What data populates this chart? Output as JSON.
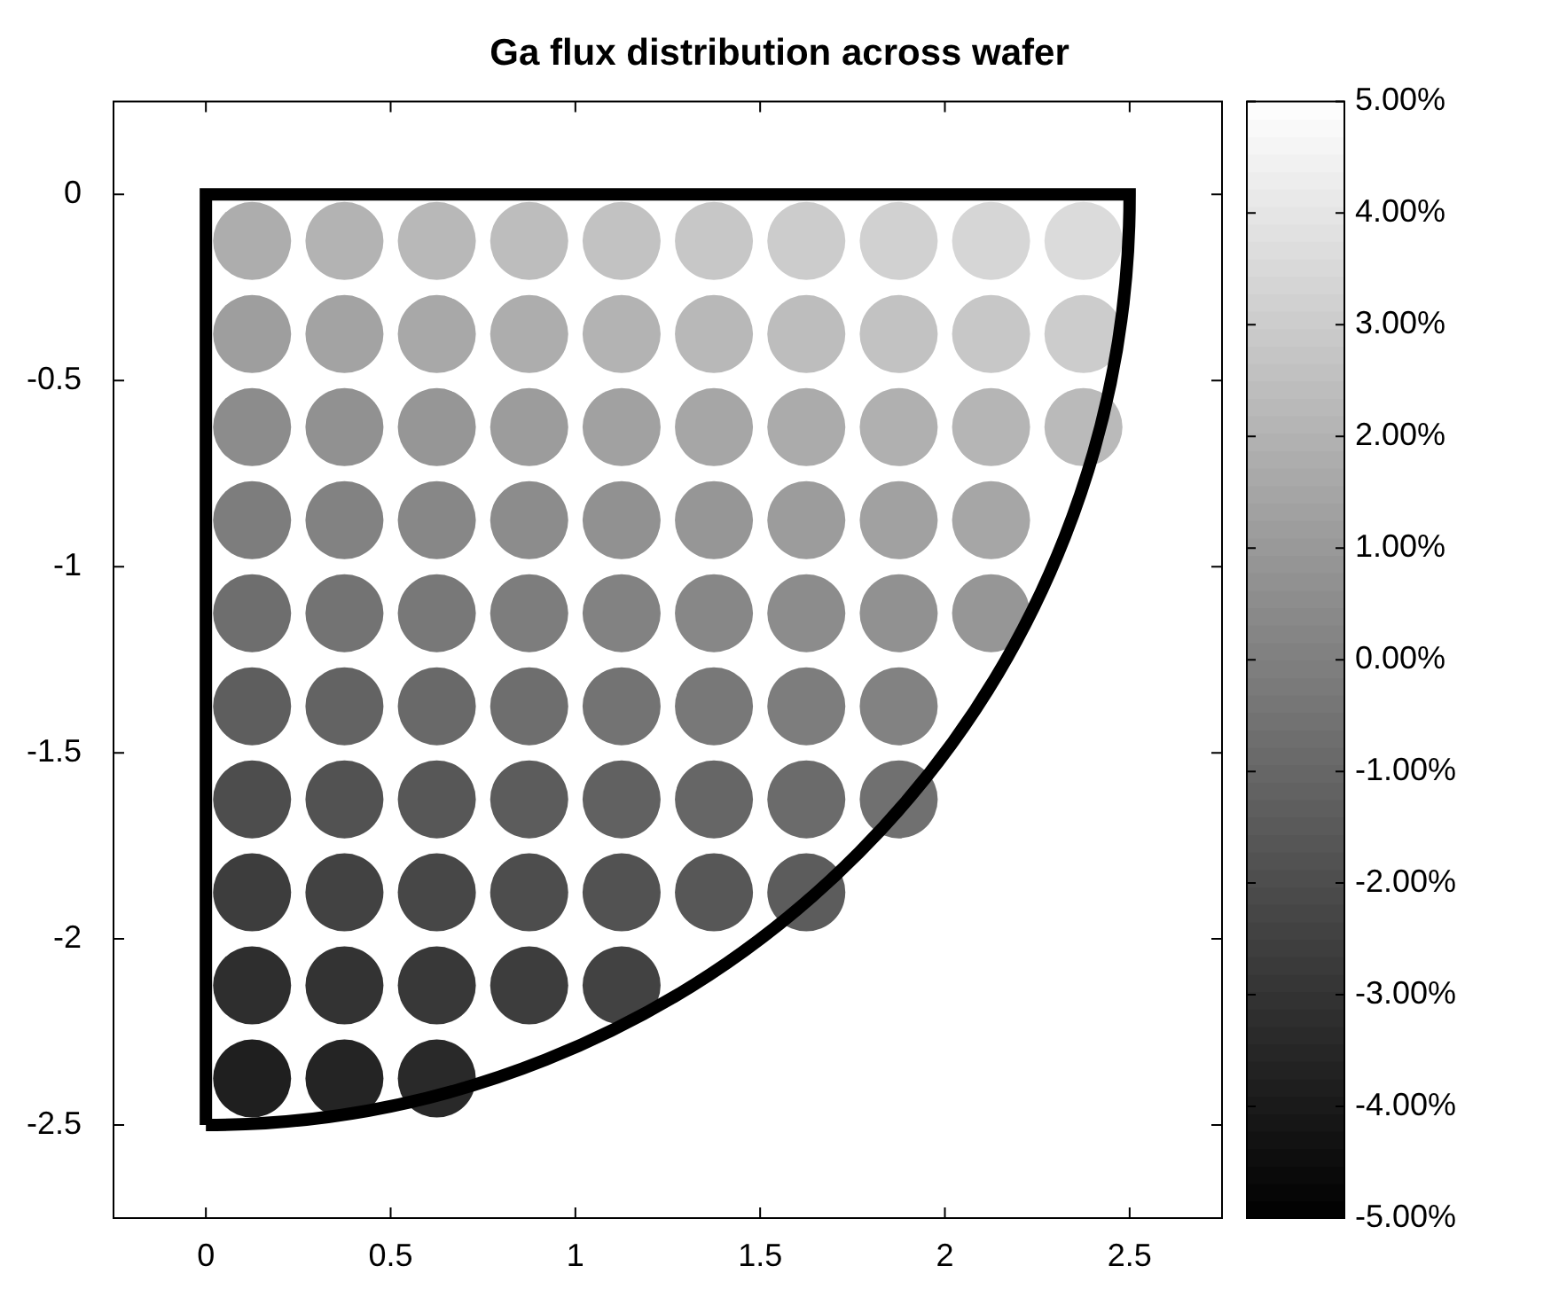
{
  "chart_data": {
    "type": "scatter",
    "title": "Ga flux distribution across wafer",
    "marker": "circle",
    "x": [
      0.125,
      0.375,
      0.625,
      0.875,
      1.125,
      1.375,
      1.625,
      1.875,
      2.125,
      2.375,
      0.125,
      0.375,
      0.625,
      0.875,
      1.125,
      1.375,
      1.625,
      1.875,
      2.125,
      2.375,
      0.125,
      0.375,
      0.625,
      0.875,
      1.125,
      1.375,
      1.625,
      1.875,
      2.125,
      2.375,
      0.125,
      0.375,
      0.625,
      0.875,
      1.125,
      1.375,
      1.625,
      1.875,
      2.125,
      0.125,
      0.375,
      0.625,
      0.875,
      1.125,
      1.375,
      1.625,
      1.875,
      2.125,
      0.125,
      0.375,
      0.625,
      0.875,
      1.125,
      1.375,
      1.625,
      1.875,
      0.125,
      0.375,
      0.625,
      0.875,
      1.125,
      1.375,
      1.625,
      1.875,
      0.125,
      0.375,
      0.625,
      0.875,
      1.125,
      1.375,
      1.625,
      0.125,
      0.375,
      0.625,
      0.875,
      1.125,
      0.125,
      0.375,
      0.625
    ],
    "values": [
      -0.125,
      -0.125,
      -0.125,
      -0.125,
      -0.125,
      -0.125,
      -0.125,
      -0.125,
      -0.125,
      -0.125,
      -0.375,
      -0.375,
      -0.375,
      -0.375,
      -0.375,
      -0.375,
      -0.375,
      -0.375,
      -0.375,
      -0.375,
      -0.625,
      -0.625,
      -0.625,
      -0.625,
      -0.625,
      -0.625,
      -0.625,
      -0.625,
      -0.625,
      -0.625,
      -0.875,
      -0.875,
      -0.875,
      -0.875,
      -0.875,
      -0.875,
      -0.875,
      -0.875,
      -0.875,
      -1.125,
      -1.125,
      -1.125,
      -1.125,
      -1.125,
      -1.125,
      -1.125,
      -1.125,
      -1.125,
      -1.375,
      -1.375,
      -1.375,
      -1.375,
      -1.375,
      -1.375,
      -1.375,
      -1.375,
      -1.625,
      -1.625,
      -1.625,
      -1.625,
      -1.625,
      -1.625,
      -1.625,
      -1.625,
      -1.875,
      -1.875,
      -1.875,
      -1.875,
      -1.875,
      -1.875,
      -1.875,
      -2.125,
      -2.125,
      -2.125,
      -2.125,
      -2.125,
      -2.375,
      -2.375,
      -2.375
    ],
    "cvalues": [
      1.8,
      2.0,
      2.2,
      2.4,
      2.6,
      2.8,
      3.0,
      3.2,
      3.4,
      3.6,
      1.2,
      1.4,
      1.6,
      1.8,
      2.0,
      2.2,
      2.4,
      2.6,
      2.8,
      3.0,
      0.5,
      0.7,
      0.9,
      1.1,
      1.3,
      1.5,
      1.7,
      1.9,
      2.1,
      2.3,
      -0.1,
      0.1,
      0.3,
      0.5,
      0.7,
      0.9,
      1.1,
      1.3,
      1.5,
      -0.7,
      -0.5,
      -0.3,
      -0.1,
      0.1,
      0.3,
      0.5,
      0.7,
      0.9,
      -1.3,
      -1.1,
      -0.9,
      -0.7,
      -0.5,
      -0.3,
      -0.1,
      0.1,
      -2.0,
      -1.8,
      -1.6,
      -1.4,
      -1.2,
      -1.0,
      -0.8,
      -0.6,
      -2.6,
      -2.4,
      -2.2,
      -2.0,
      -1.8,
      -1.6,
      -1.4,
      -3.2,
      -3.0,
      -2.8,
      -2.6,
      -2.4,
      -3.8,
      -3.6,
      -3.4
    ],
    "xlim": [
      -0.25,
      2.75
    ],
    "xticks": [
      0,
      0.5,
      1,
      1.5,
      2,
      2.5
    ],
    "ylim": [
      -2.75,
      0.25
    ],
    "yticks": [
      -2.5,
      -2,
      -1.5,
      -1,
      -0.5,
      0
    ],
    "clim": [
      -5,
      5
    ],
    "cticks": [
      {
        "value": 5,
        "label": "5.00%"
      },
      {
        "value": 4,
        "label": "4.00%"
      },
      {
        "value": 3,
        "label": "3.00%"
      },
      {
        "value": 2,
        "label": "2.00%"
      },
      {
        "value": 1,
        "label": "1.00%"
      },
      {
        "value": 0,
        "label": "0.00%"
      },
      {
        "value": -1,
        "label": "-1.00%"
      },
      {
        "value": -2,
        "label": "-2.00%"
      },
      {
        "value": -3,
        "label": "-3.00%"
      },
      {
        "value": -4,
        "label": "-4.00%"
      },
      {
        "value": -5,
        "label": "-5.00%"
      }
    ]
  }
}
